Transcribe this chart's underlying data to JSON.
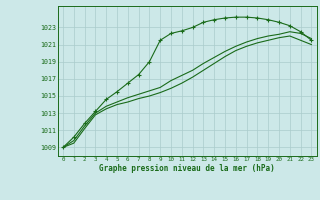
{
  "background_color": "#cce8e8",
  "plot_bg_color": "#cce8e8",
  "grid_color": "#aacccc",
  "line_color": "#1a6b1a",
  "title": "Graphe pression niveau de la mer (hPa)",
  "xlim": [
    -0.5,
    23.5
  ],
  "ylim": [
    1008.0,
    1025.5
  ],
  "yticks": [
    1009,
    1011,
    1013,
    1015,
    1017,
    1019,
    1021,
    1023
  ],
  "xticks": [
    0,
    1,
    2,
    3,
    4,
    5,
    6,
    7,
    8,
    9,
    10,
    11,
    12,
    13,
    14,
    15,
    16,
    17,
    18,
    19,
    20,
    21,
    22,
    23
  ],
  "line1_x": [
    0,
    1,
    2,
    3,
    4,
    5,
    6,
    7,
    8,
    9,
    10,
    11,
    12,
    13,
    14,
    15,
    16,
    17,
    18,
    19,
    20,
    21,
    22,
    23
  ],
  "line1_y": [
    1009.0,
    1010.2,
    1011.8,
    1013.2,
    1014.6,
    1015.5,
    1016.5,
    1017.5,
    1019.0,
    1021.5,
    1022.3,
    1022.6,
    1023.0,
    1023.6,
    1023.9,
    1024.1,
    1024.2,
    1024.2,
    1024.1,
    1023.9,
    1023.6,
    1023.2,
    1022.5,
    1021.5
  ],
  "line2_x": [
    0,
    1,
    2,
    3,
    4,
    5,
    6,
    7,
    8,
    9,
    10,
    11,
    12,
    13,
    14,
    15,
    16,
    17,
    18,
    19,
    20,
    21,
    22,
    23
  ],
  "line2_y": [
    1009.0,
    1009.8,
    1011.5,
    1013.0,
    1013.8,
    1014.3,
    1014.8,
    1015.2,
    1015.6,
    1016.0,
    1016.8,
    1017.4,
    1018.0,
    1018.8,
    1019.5,
    1020.2,
    1020.8,
    1021.3,
    1021.7,
    1022.0,
    1022.2,
    1022.5,
    1022.3,
    1021.7
  ],
  "line3_x": [
    0,
    1,
    2,
    3,
    4,
    5,
    6,
    7,
    8,
    9,
    10,
    11,
    12,
    13,
    14,
    15,
    16,
    17,
    18,
    19,
    20,
    21,
    22,
    23
  ],
  "line3_y": [
    1009.0,
    1009.5,
    1011.2,
    1012.8,
    1013.5,
    1014.0,
    1014.3,
    1014.7,
    1015.0,
    1015.4,
    1015.9,
    1016.5,
    1017.2,
    1018.0,
    1018.8,
    1019.6,
    1020.3,
    1020.8,
    1021.2,
    1021.5,
    1021.8,
    1022.0,
    1021.5,
    1021.0
  ]
}
